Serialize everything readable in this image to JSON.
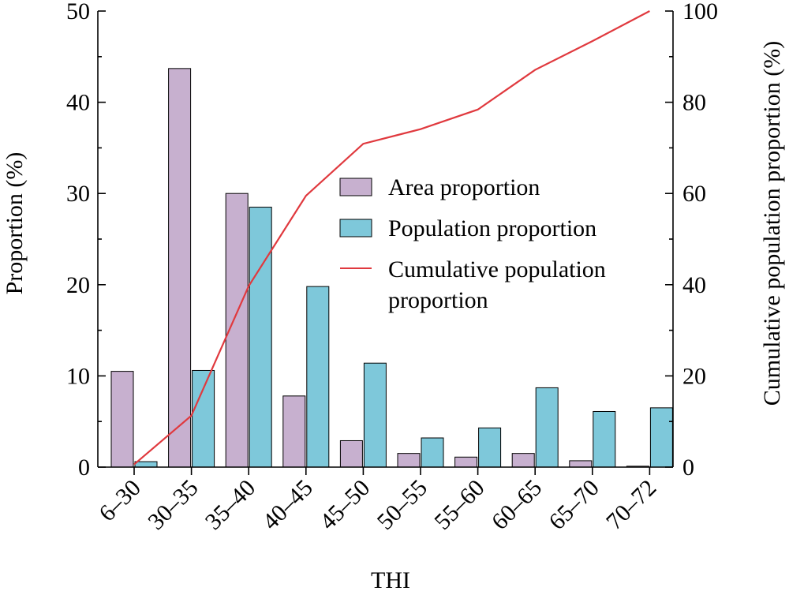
{
  "chart_data": {
    "type": "bar",
    "categories": [
      "6–30",
      "30–35",
      "35–40",
      "40–45",
      "45–50",
      "50–55",
      "55–60",
      "60–65",
      "65–70",
      "70–72"
    ],
    "series": [
      {
        "name": "Area proportion",
        "values": [
          10.5,
          43.7,
          30.0,
          7.8,
          2.9,
          1.5,
          1.1,
          1.5,
          0.7,
          0.1
        ],
        "color": "#c7b0cf",
        "axis": "left"
      },
      {
        "name": "Population proportion",
        "values": [
          0.6,
          10.6,
          28.5,
          19.8,
          11.4,
          3.2,
          4.3,
          8.7,
          6.1,
          6.5
        ],
        "color": "#7ec8da",
        "axis": "left"
      },
      {
        "name": "Cumulative population proportion",
        "type": "line",
        "values": [
          0.6,
          11.3,
          39.7,
          59.5,
          70.9,
          74.1,
          78.4,
          87.1,
          93.4,
          100
        ],
        "color": "#e0393e",
        "axis": "right"
      }
    ],
    "xlabel": "THI",
    "ylabel": "Proportion (%)",
    "y2label": "Cumulative population proportion (%)",
    "ylim": [
      0,
      50
    ],
    "y2lim": [
      0,
      100
    ],
    "yticks": [
      "0",
      "10",
      "20",
      "30",
      "40",
      "50"
    ],
    "y2ticks": [
      "0",
      "20",
      "40",
      "60",
      "80",
      "100"
    ],
    "legend": {
      "position": "center-right",
      "entries": [
        "Area proportion",
        "Population proportion",
        "Cumulative population",
        "proportion"
      ]
    },
    "grid": false
  }
}
